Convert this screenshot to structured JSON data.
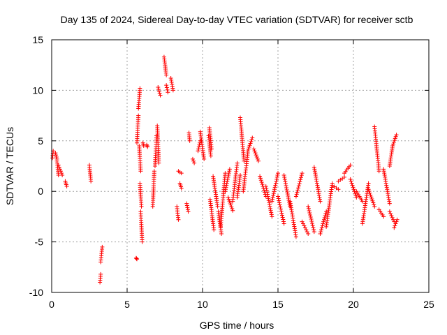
{
  "chart_data": {
    "type": "scatter",
    "title": "Day 135 of 2024, Sidereal Day-to-day VTEC variation (SDTVAR) for receiver sctb",
    "xlabel": "GPS time / hours",
    "ylabel": "SDTVAR / TECUs",
    "xlim": [
      0,
      25
    ],
    "ylim": [
      -10,
      15
    ],
    "xticks": [
      0,
      5,
      10,
      15,
      20,
      25
    ],
    "yticks": [
      -10,
      -5,
      0,
      5,
      10,
      15
    ],
    "xtick_labels": [
      "0",
      "5",
      "10",
      "15",
      "20",
      "25"
    ],
    "ytick_labels": [
      "-10",
      "-5",
      "0",
      "5",
      "10",
      "15"
    ],
    "grid": true,
    "marker": "+",
    "color": "#ff0000",
    "series": [
      {
        "name": "SDTVAR",
        "segments": [
          {
            "x": [
              0.05,
              0.1
            ],
            "y": [
              3.3,
              4.0
            ]
          },
          {
            "x": [
              0.25,
              0.35
            ],
            "y": [
              3.8,
              3.2
            ]
          },
          {
            "x": [
              0.35,
              0.45
            ],
            "y": [
              3.0,
              1.6
            ]
          },
          {
            "x": [
              0.45,
              0.7
            ],
            "y": [
              2.6,
              1.6
            ]
          },
          {
            "x": [
              0.9,
              1.0
            ],
            "y": [
              1.0,
              0.5
            ]
          },
          {
            "x": [
              2.5,
              2.6
            ],
            "y": [
              2.6,
              1.0
            ]
          },
          {
            "x": [
              3.2,
              3.25
            ],
            "y": [
              -9.0,
              -8.2
            ]
          },
          {
            "x": [
              3.25,
              3.35
            ],
            "y": [
              -7.0,
              -5.5
            ]
          },
          {
            "x": [
              5.6,
              5.65
            ],
            "y": [
              -6.6,
              -6.7
            ]
          },
          {
            "x": [
              5.65,
              5.75
            ],
            "y": [
              4.8,
              7.5
            ]
          },
          {
            "x": [
              5.75,
              5.85
            ],
            "y": [
              8.2,
              10.2
            ]
          },
          {
            "x": [
              5.8,
              5.9
            ],
            "y": [
              4.5,
              2.0
            ]
          },
          {
            "x": [
              5.85,
              5.95
            ],
            "y": [
              0.8,
              -1.5
            ]
          },
          {
            "x": [
              5.9,
              6.0
            ],
            "y": [
              -2.0,
              -5.0
            ]
          },
          {
            "x": [
              6.05,
              6.1
            ],
            "y": [
              4.8,
              4.5
            ]
          },
          {
            "x": [
              6.3,
              6.35
            ],
            "y": [
              4.6,
              4.4
            ]
          },
          {
            "x": [
              6.7,
              6.8
            ],
            "y": [
              -1.5,
              2.0
            ]
          },
          {
            "x": [
              6.85,
              6.95
            ],
            "y": [
              2.5,
              5.5
            ]
          },
          {
            "x": [
              7.0,
              7.1
            ],
            "y": [
              6.5,
              2.8
            ]
          },
          {
            "x": [
              7.05,
              7.2
            ],
            "y": [
              10.3,
              9.5
            ]
          },
          {
            "x": [
              7.45,
              7.6
            ],
            "y": [
              13.3,
              11.5
            ]
          },
          {
            "x": [
              7.6,
              7.7
            ],
            "y": [
              10.5,
              9.8
            ]
          },
          {
            "x": [
              7.9,
              8.05
            ],
            "y": [
              11.2,
              10.0
            ]
          },
          {
            "x": [
              8.3,
              8.4
            ],
            "y": [
              -1.5,
              -2.8
            ]
          },
          {
            "x": [
              8.4,
              8.6
            ],
            "y": [
              2.0,
              1.8
            ]
          },
          {
            "x": [
              8.5,
              8.6
            ],
            "y": [
              0.8,
              0.3
            ]
          },
          {
            "x": [
              8.95,
              9.05
            ],
            "y": [
              -1.2,
              -2.0
            ]
          },
          {
            "x": [
              9.1,
              9.15
            ],
            "y": [
              5.8,
              5.0
            ]
          },
          {
            "x": [
              9.35,
              9.45
            ],
            "y": [
              3.2,
              2.8
            ]
          },
          {
            "x": [
              9.7,
              9.85
            ],
            "y": [
              4.0,
              5.0
            ]
          },
          {
            "x": [
              9.85,
              10.1
            ],
            "y": [
              5.9,
              3.2
            ]
          },
          {
            "x": [
              10.4,
              10.55
            ],
            "y": [
              5.5,
              3.5
            ]
          },
          {
            "x": [
              10.45,
              10.6
            ],
            "y": [
              6.3,
              4.2
            ]
          },
          {
            "x": [
              10.5,
              10.75
            ],
            "y": [
              -0.8,
              -3.8
            ]
          },
          {
            "x": [
              10.7,
              11.0
            ],
            "y": [
              1.5,
              -1.5
            ]
          },
          {
            "x": [
              11.05,
              11.25
            ],
            "y": [
              -2.0,
              -4.2
            ]
          },
          {
            "x": [
              11.2,
              11.5
            ],
            "y": [
              -3.5,
              1.8
            ]
          },
          {
            "x": [
              11.5,
              11.8
            ],
            "y": [
              0.0,
              2.2
            ]
          },
          {
            "x": [
              11.7,
              12.0
            ],
            "y": [
              -0.6,
              -1.9
            ]
          },
          {
            "x": [
              12.0,
              12.3
            ],
            "y": [
              -1.0,
              2.8
            ]
          },
          {
            "x": [
              12.3,
              12.5
            ],
            "y": [
              -0.6,
              1.6
            ]
          },
          {
            "x": [
              12.5,
              12.75
            ],
            "y": [
              7.3,
              3.0
            ]
          },
          {
            "x": [
              12.7,
              13.0
            ],
            "y": [
              0.0,
              3.8
            ]
          },
          {
            "x": [
              13.0,
              13.3
            ],
            "y": [
              4.0,
              5.3
            ]
          },
          {
            "x": [
              13.4,
              13.7
            ],
            "y": [
              4.2,
              3.0
            ]
          },
          {
            "x": [
              13.8,
              14.2
            ],
            "y": [
              1.5,
              -0.5
            ]
          },
          {
            "x": [
              14.2,
              14.6
            ],
            "y": [
              0.5,
              -2.5
            ]
          },
          {
            "x": [
              14.6,
              15.0
            ],
            "y": [
              -1.0,
              1.8
            ]
          },
          {
            "x": [
              15.0,
              15.4
            ],
            "y": [
              -0.5,
              -3.2
            ]
          },
          {
            "x": [
              15.4,
              15.8
            ],
            "y": [
              1.6,
              -1.5
            ]
          },
          {
            "x": [
              15.8,
              16.2
            ],
            "y": [
              -1.0,
              -4.5
            ]
          },
          {
            "x": [
              16.2,
              16.6
            ],
            "y": [
              -0.5,
              1.8
            ]
          },
          {
            "x": [
              16.6,
              17.0
            ],
            "y": [
              -3.0,
              -4.2
            ]
          },
          {
            "x": [
              17.0,
              17.4
            ],
            "y": [
              -1.5,
              -4.0
            ]
          },
          {
            "x": [
              17.4,
              17.8
            ],
            "y": [
              2.4,
              -1.0
            ]
          },
          {
            "x": [
              17.8,
              18.2
            ],
            "y": [
              -4.2,
              -2.0
            ]
          },
          {
            "x": [
              18.2,
              18.6
            ],
            "y": [
              -3.5,
              0.8
            ]
          },
          {
            "x": [
              18.6,
              19.0
            ],
            "y": [
              0.6,
              0.2
            ]
          },
          {
            "x": [
              19.0,
              19.4
            ],
            "y": [
              1.0,
              1.4
            ]
          },
          {
            "x": [
              19.4,
              19.8
            ],
            "y": [
              1.8,
              2.6
            ]
          },
          {
            "x": [
              19.8,
              20.2
            ],
            "y": [
              1.2,
              -0.6
            ]
          },
          {
            "x": [
              20.2,
              20.6
            ],
            "y": [
              0.0,
              -1.0
            ]
          },
          {
            "x": [
              20.6,
              21.0
            ],
            "y": [
              -3.2,
              0.8
            ]
          },
          {
            "x": [
              21.0,
              21.4
            ],
            "y": [
              0.2,
              -1.5
            ]
          },
          {
            "x": [
              21.4,
              21.7
            ],
            "y": [
              6.4,
              2.0
            ]
          },
          {
            "x": [
              21.7,
              22.0
            ],
            "y": [
              -1.8,
              -2.5
            ]
          },
          {
            "x": [
              22.0,
              22.4
            ],
            "y": [
              2.2,
              -1.2
            ]
          },
          {
            "x": [
              22.4,
              22.7
            ],
            "y": [
              -2.0,
              -3.0
            ]
          },
          {
            "x": [
              22.7,
              22.9
            ],
            "y": [
              -3.6,
              -2.8
            ]
          },
          {
            "x": [
              22.4,
              22.6
            ],
            "y": [
              2.5,
              4.5
            ]
          },
          {
            "x": [
              22.6,
              22.85
            ],
            "y": [
              4.5,
              5.6
            ]
          }
        ]
      }
    ]
  }
}
